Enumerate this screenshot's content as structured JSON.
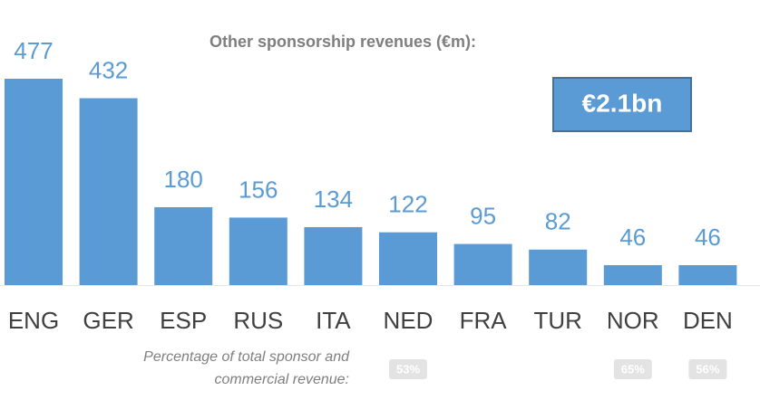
{
  "chart_data": {
    "type": "bar",
    "title": "Other sponsorship revenues (€m):",
    "categories": [
      "ENG",
      "GER",
      "ESP",
      "RUS",
      "ITA",
      "NED",
      "FRA",
      "TUR",
      "NOR",
      "DEN"
    ],
    "values": [
      477,
      432,
      180,
      156,
      134,
      122,
      95,
      82,
      46,
      46
    ],
    "color": "#5b9bd5",
    "annotation": "€2.1bn",
    "footnote": [
      "Percentage of total sponsor and",
      "commercial revenue:"
    ],
    "percentages": [
      null,
      null,
      null,
      null,
      null,
      "53%",
      null,
      null,
      "65%",
      "56%"
    ]
  }
}
